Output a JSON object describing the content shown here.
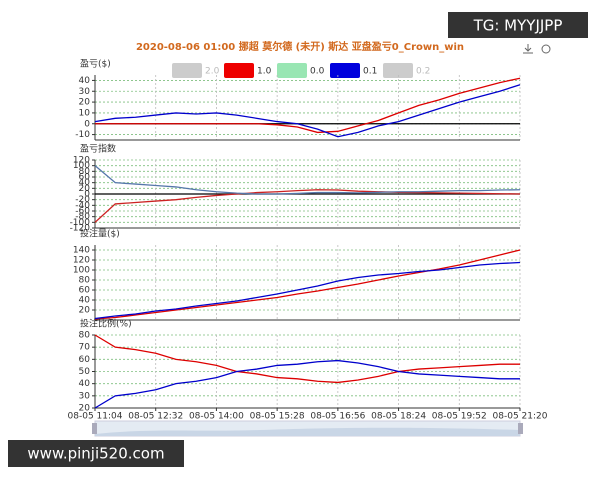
{
  "title": "2020-08-06 01:00 挪超 莫尔德 (未开) 斯达 亚盘盈亏0_Crown_win",
  "watermark_top": "TG: MYYJJPP",
  "watermark_bottom": "www.pinji520.com",
  "legend": [
    {
      "name": "2.0",
      "color": "#cccccc"
    },
    {
      "name": "1.0",
      "color": "#ee0000"
    },
    {
      "name": "0.0",
      "color": "#99e6b3"
    },
    {
      "name": "0.1",
      "color": "#0000dd"
    },
    {
      "name": "0.2",
      "color": "#cccccc"
    }
  ],
  "chart_data": [
    {
      "type": "line",
      "y_label": "盈亏($)",
      "ylim": [
        -15,
        45
      ],
      "yticks": [
        -10,
        0,
        10,
        20,
        30,
        40
      ],
      "grid": true,
      "zero_line": true,
      "series": [
        {
          "color": "#dd0000",
          "values": [
            0,
            0,
            0,
            0,
            0,
            0,
            0,
            0,
            0,
            -1,
            -3,
            -8,
            -7,
            -2,
            3,
            10,
            17,
            22,
            28,
            33,
            38,
            42
          ]
        },
        {
          "color": "#0000cc",
          "values": [
            2,
            5,
            6,
            8,
            10,
            9,
            10,
            8,
            5,
            2,
            0,
            -5,
            -12,
            -8,
            -2,
            2,
            8,
            14,
            20,
            25,
            30,
            36
          ]
        }
      ]
    },
    {
      "type": "line",
      "y_label": "盈亏指数",
      "ylim": [
        -120,
        120
      ],
      "yticks": [
        -120,
        -100,
        -80,
        -60,
        -40,
        -20,
        0,
        20,
        40,
        60,
        80,
        100,
        120
      ],
      "grid": true,
      "zero_line": true,
      "series": [
        {
          "color": "#cc2222",
          "values": [
            -100,
            -35,
            -30,
            -25,
            -20,
            -12,
            -5,
            0,
            5,
            8,
            12,
            15,
            14,
            10,
            8,
            6,
            5,
            4,
            3,
            2,
            1,
            0
          ]
        },
        {
          "color": "#5577aa",
          "values": [
            100,
            40,
            35,
            30,
            25,
            15,
            8,
            3,
            0,
            0,
            2,
            5,
            5,
            4,
            6,
            8,
            8,
            10,
            12,
            12,
            14,
            15
          ]
        }
      ]
    },
    {
      "type": "line",
      "y_label": "投注量($)",
      "ylim": [
        0,
        150
      ],
      "yticks": [
        20,
        40,
        60,
        80,
        100,
        120,
        140
      ],
      "grid": true,
      "zero_line": false,
      "series": [
        {
          "color": "#dd0000",
          "values": [
            2,
            5,
            10,
            15,
            20,
            25,
            30,
            35,
            40,
            45,
            52,
            58,
            65,
            72,
            80,
            88,
            95,
            102,
            110,
            120,
            130,
            140
          ]
        },
        {
          "color": "#0000cc",
          "values": [
            3,
            8,
            12,
            18,
            22,
            28,
            33,
            38,
            45,
            52,
            60,
            68,
            78,
            85,
            90,
            93,
            97,
            100,
            105,
            110,
            113,
            115
          ]
        }
      ]
    },
    {
      "type": "line",
      "y_label": "投注比例(%)",
      "ylim": [
        20,
        80
      ],
      "yticks": [
        20,
        30,
        40,
        50,
        60,
        70,
        80
      ],
      "grid": true,
      "zero_line": false,
      "categories": [
        "08-05 11:04",
        null,
        null,
        "08-05 12:32",
        null,
        null,
        "08-05 14:00",
        null,
        null,
        "08-05 15:28",
        null,
        null,
        "08-05 16:56",
        null,
        null,
        "08-05 18:24",
        null,
        null,
        "08-05 19:52",
        null,
        null,
        "08-05 21:20"
      ],
      "series": [
        {
          "color": "#dd0000",
          "values": [
            80,
            70,
            68,
            65,
            60,
            58,
            55,
            50,
            48,
            45,
            44,
            42,
            41,
            43,
            46,
            50,
            52,
            53,
            54,
            55,
            56,
            56
          ]
        },
        {
          "color": "#0000cc",
          "values": [
            20,
            30,
            32,
            35,
            40,
            42,
            45,
            50,
            52,
            55,
            56,
            58,
            59,
            57,
            54,
            50,
            48,
            47,
            46,
            45,
            44,
            44
          ]
        }
      ]
    }
  ]
}
